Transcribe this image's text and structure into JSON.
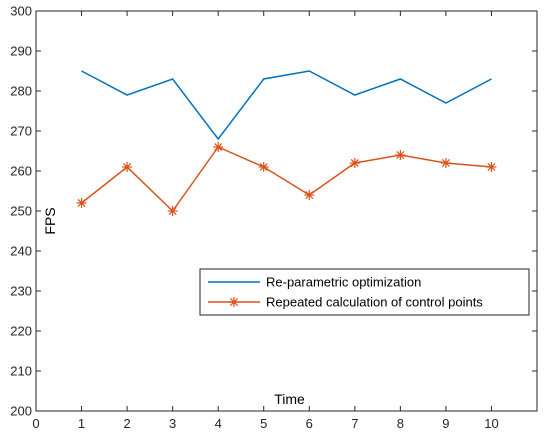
{
  "chart_data": {
    "type": "line",
    "xlabel": "Time",
    "ylabel": "FPS",
    "xlim": [
      0,
      11
    ],
    "ylim": [
      200,
      300
    ],
    "xticks": [
      "0",
      "1",
      "2",
      "3",
      "4",
      "5",
      "6",
      "7",
      "8",
      "9",
      "10"
    ],
    "yticks": [
      "200",
      "210",
      "220",
      "230",
      "240",
      "250",
      "260",
      "270",
      "280",
      "290",
      "300"
    ],
    "x": [
      1,
      2,
      3,
      4,
      5,
      6,
      7,
      8,
      9,
      10
    ],
    "series": [
      {
        "name": "Re-parametric optimization",
        "values": [
          285,
          279,
          283,
          268,
          283,
          285,
          279,
          283,
          277,
          283
        ],
        "color": "#0072BD",
        "marker": "none"
      },
      {
        "name": "Repeated calculation of control points",
        "values": [
          252,
          261,
          250,
          266,
          261,
          254,
          262,
          264,
          262,
          261
        ],
        "color": "#D95319",
        "marker": "asterisk"
      }
    ],
    "legend_position": "center-right",
    "grid": false
  }
}
